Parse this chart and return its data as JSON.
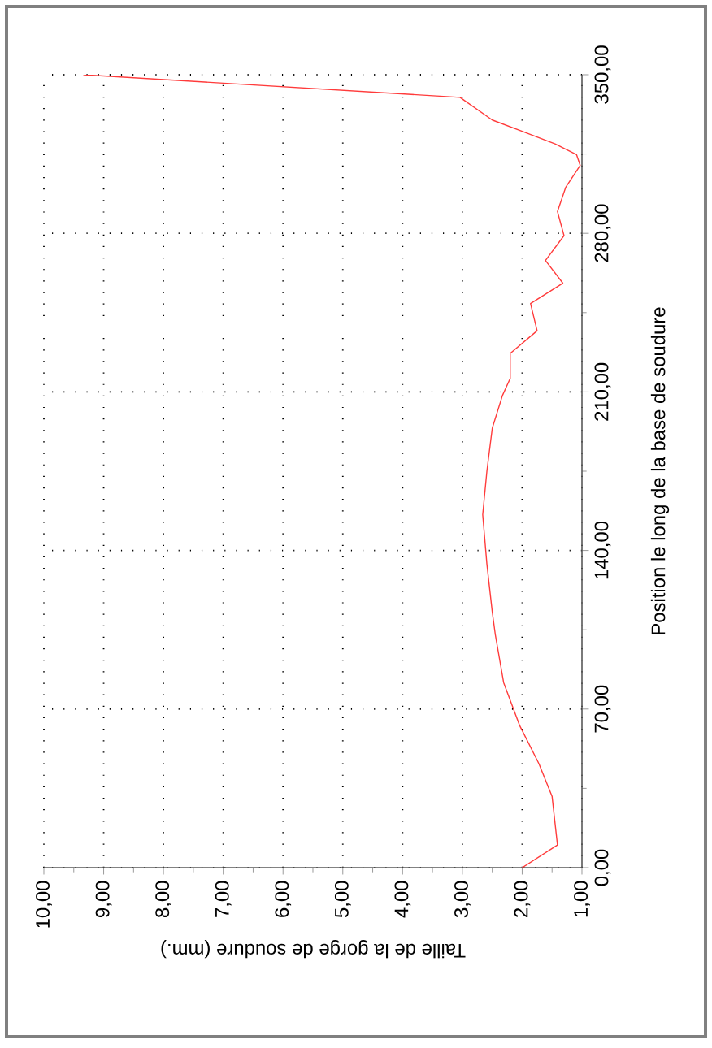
{
  "chart_data": {
    "type": "line",
    "xlabel": "Taille de la gorge de soudure (mm.)",
    "ylabel": "Position le long de la base de soudure",
    "series": [
      {
        "color": "#ff3b3b",
        "x": [
          2.0,
          1.41,
          1.5,
          1.72,
          2.04,
          2.31,
          2.45,
          2.5,
          2.59,
          2.66,
          2.59,
          2.5,
          2.33,
          2.2,
          2.2,
          1.75,
          1.86,
          1.32,
          1.61,
          1.3,
          1.41,
          1.27,
          1.03,
          1.09,
          1.45,
          2.0,
          2.5,
          3.04,
          9.34
        ],
        "values": [
          0,
          10,
          31.5,
          45.9,
          62.6,
          81.7,
          103,
          112.8,
          134,
          155.8,
          175,
          194,
          208.4,
          216,
          227,
          237,
          249,
          258,
          268,
          279,
          289.6,
          300.4,
          310,
          314.7,
          319.5,
          325,
          330,
          340,
          350
        ]
      }
    ],
    "xlim": [
      10,
      1
    ],
    "ylim": [
      0,
      350
    ],
    "xticks": [
      {
        "value": 1,
        "label": "1,00"
      },
      {
        "value": 2,
        "label": "2,00"
      },
      {
        "value": 3,
        "label": "3,00"
      },
      {
        "value": 4,
        "label": "4,00"
      },
      {
        "value": 5,
        "label": "5,00"
      },
      {
        "value": 6,
        "label": "6,00"
      },
      {
        "value": 7,
        "label": "7,00"
      },
      {
        "value": 8,
        "label": "8,00"
      },
      {
        "value": 9,
        "label": "9,00"
      },
      {
        "value": 10,
        "label": "10,00"
      }
    ],
    "yticks": [
      {
        "value": 0,
        "label": "0,00"
      },
      {
        "value": 70,
        "label": "70,00"
      },
      {
        "value": 140,
        "label": "140,00"
      },
      {
        "value": 210,
        "label": "210,00"
      },
      {
        "value": 280,
        "label": "280,00"
      },
      {
        "value": 350,
        "label": "350,00"
      }
    ],
    "grid": true,
    "marker": "none",
    "line_style": "solid"
  }
}
